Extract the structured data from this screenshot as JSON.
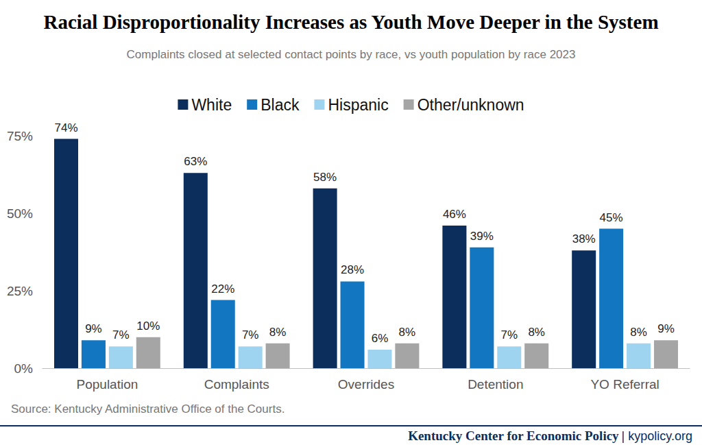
{
  "chart_data": {
    "type": "bar",
    "title": "Racial Disproportionality Increases as Youth Move Deeper in the System",
    "subtitle": "Complaints closed at selected contact points by race, vs youth population by race 2023",
    "source": "Source: Kentucky Administrative Office of the Courts.",
    "footer": {
      "name": "Kentucky Center for Economic Policy",
      "site": "| kypolicy.org"
    },
    "categories": [
      "Population",
      "Complaints",
      "Overrides",
      "Detention",
      "YO Referral"
    ],
    "series": [
      {
        "name": "White",
        "color": "#0b2e5c",
        "values": [
          74,
          63,
          58,
          46,
          38
        ],
        "value_labels": [
          "74%",
          "63%",
          "58%",
          "46%",
          "38%"
        ]
      },
      {
        "name": "Black",
        "color": "#1276c0",
        "values": [
          9,
          22,
          28,
          39,
          45
        ],
        "value_labels": [
          "9%",
          "22%",
          "28%",
          "39%",
          "45%"
        ]
      },
      {
        "name": "Hispanic",
        "color": "#9fd4f1",
        "values": [
          7,
          7,
          6,
          7,
          8
        ],
        "value_labels": [
          "7%",
          "7%",
          "6%",
          "7%",
          "8%"
        ]
      },
      {
        "name": "Other/unknown",
        "color": "#a5a5a5",
        "values": [
          10,
          8,
          8,
          8,
          9
        ],
        "value_labels": [
          "10%",
          "8%",
          "8%",
          "8%",
          "9%"
        ]
      }
    ],
    "ylim": [
      0,
      75
    ],
    "yticks": [
      {
        "value": 0,
        "label": "0%"
      },
      {
        "value": 25,
        "label": "25%"
      },
      {
        "value": 50,
        "label": "50%"
      },
      {
        "value": 75,
        "label": "75%"
      }
    ],
    "grid": false,
    "legend": "top",
    "data_labels": true
  }
}
